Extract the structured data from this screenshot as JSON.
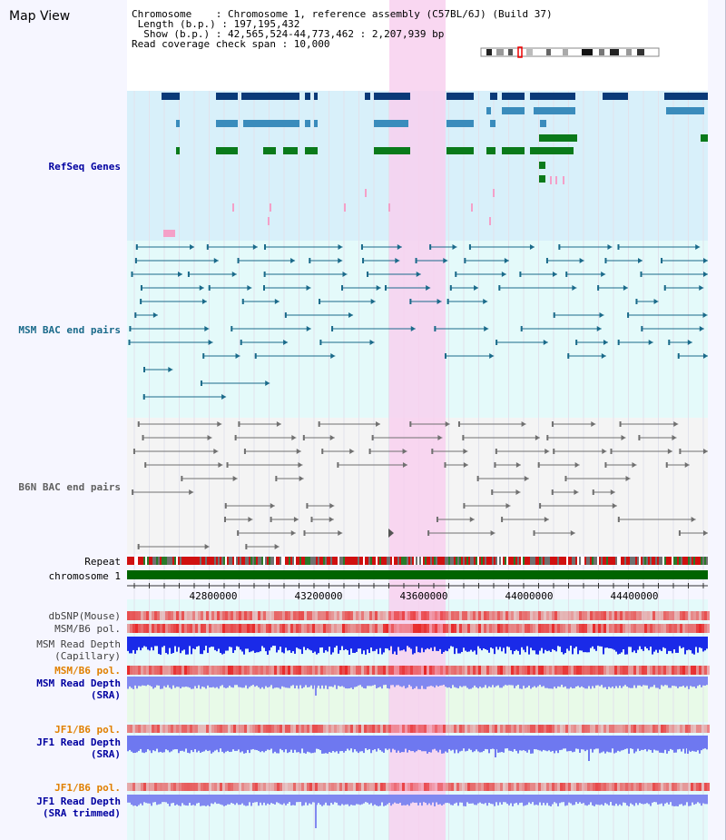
{
  "page": {
    "title": "Map View"
  },
  "info": {
    "chromosome": "Chromosome    : Chromosome 1, reference assembly (C57BL/6J) (Build 37)",
    "length": " Length (b.p.) : 197,195,432",
    "show": "  Show (b.p.) : 42,565,524-44,773,462 : 2,207,939 bp",
    "coverage": "Read coverage check span : 10,000"
  },
  "labels": {
    "refseq": "RefSeq Genes",
    "msm_bac": "MSM BAC end pairs",
    "b6n_bac": "B6N BAC end pairs",
    "repeat": "Repeat",
    "chromosome": "chromosome 1",
    "dbsnp": "dbSNP(Mouse)",
    "msm_b6_pol": "MSM/B6 pol.",
    "msm_depth_cap_1": "MSM Read Depth",
    "msm_depth_cap_2": "(Capillary)",
    "msm_b6_pol_2": "MSM/B6 pol.",
    "msm_depth_sra_1": "MSM Read Depth",
    "msm_depth_sra_2": "(SRA)",
    "jf1_b6_pol": "JF1/B6 pol.",
    "jf1_depth_sra_1": "JF1 Read Depth",
    "jf1_depth_sra_2": "(SRA)",
    "jf1_b6_pol_2": "JF1/B6 pol.",
    "jf1_depth_trim_1": "JF1 Read Depth",
    "jf1_depth_trim_2": "(SRA trimmed)"
  },
  "axis": {
    "ticks": [
      "42800000",
      "43200000",
      "43600000",
      "44000000",
      "44400000"
    ]
  },
  "colors": {
    "refseq_dark": "#0a3a78",
    "refseq_mid": "#3a8cbc",
    "refseq_green": "#0a7a1a",
    "refseq_pink": "#f4a0c8",
    "msm_teal": "#1a6a8a",
    "b6n_grey": "#707070",
    "chrom_green": "#006400",
    "highlight": "#f8d0ee",
    "depth_blue": "#1a2ae8",
    "depth_light": "#8088f0",
    "label_blue": "#0000a0",
    "label_orange": "#e08000"
  }
}
